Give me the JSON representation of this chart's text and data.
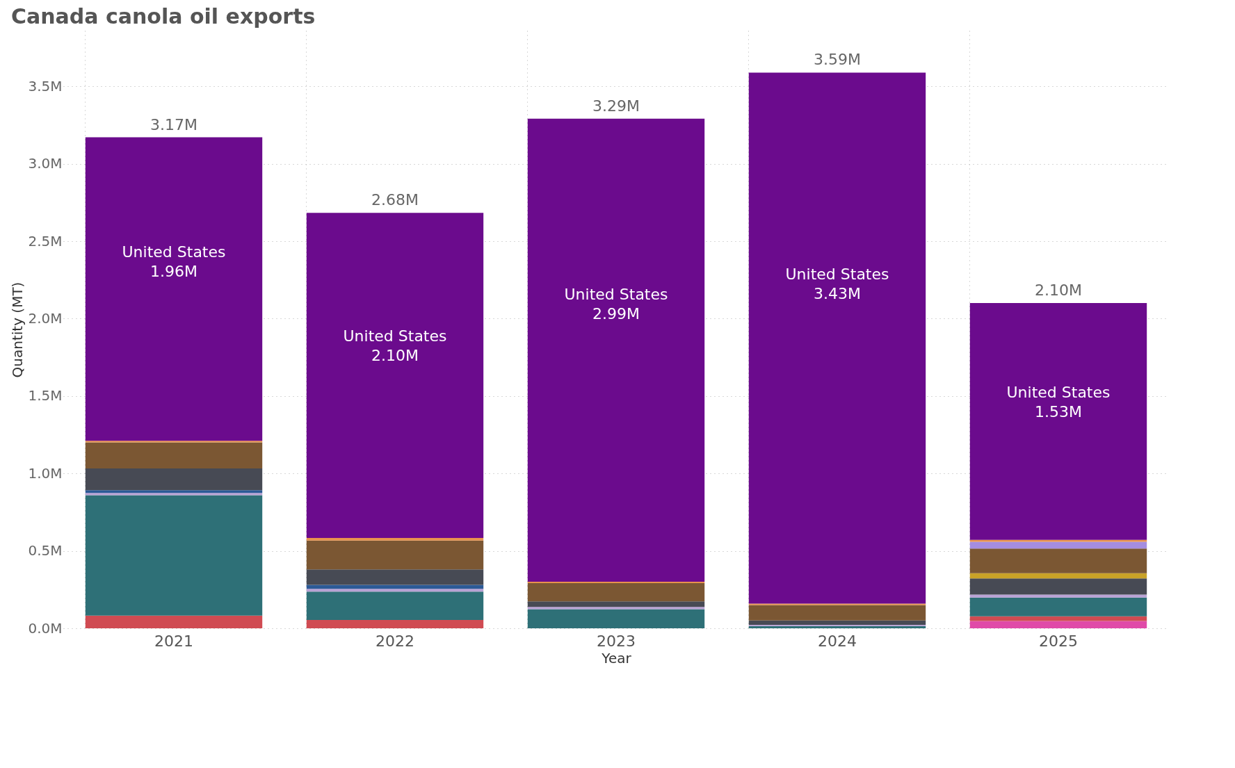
{
  "chart_data": {
    "type": "bar",
    "stacked": true,
    "title": "Canada canola oil exports",
    "xlabel": "Year",
    "ylabel": "Quantity (MT)",
    "categories": [
      "2021",
      "2022",
      "2023",
      "2024",
      "2025"
    ],
    "series": [
      {
        "color": "#e04aa8",
        "values": [
          null,
          null,
          null,
          null,
          0.047
        ]
      },
      {
        "color": "#d04b52",
        "values": [
          0.082,
          0.054,
          null,
          null,
          0.03
        ]
      },
      {
        "color": "#2e7077",
        "values": [
          0.777,
          0.183,
          0.123,
          0.015,
          0.122
        ]
      },
      {
        "color": "#b8a2d4",
        "values": [
          0.015,
          0.018,
          0.015,
          0.008,
          0.019
        ]
      },
      {
        "color": "#2c5a96",
        "values": [
          0.018,
          0.025,
          null,
          null,
          null
        ]
      },
      {
        "color": "#474a54",
        "values": [
          0.14,
          0.1,
          0.036,
          0.027,
          0.104
        ]
      },
      {
        "color": "#c9a227",
        "values": [
          null,
          null,
          null,
          null,
          0.034
        ]
      },
      {
        "color": "#7b5733",
        "values": [
          0.169,
          0.187,
          0.118,
          0.1,
          0.159
        ]
      },
      {
        "color": "#a58de0",
        "values": [
          null,
          null,
          null,
          null,
          0.044
        ]
      },
      {
        "color": "#e8924d",
        "values": [
          0.01,
          0.016,
          0.009,
          0.009,
          0.012
        ]
      },
      {
        "name": "United States",
        "color": "#6b0b8d",
        "values": [
          1.96,
          2.1,
          2.99,
          3.43,
          1.53
        ],
        "value_labels": [
          "1.96M",
          "2.10M",
          "2.99M",
          "3.43M",
          "1.53M"
        ]
      }
    ],
    "totals": [
      "3.17M",
      "2.68M",
      "3.29M",
      "3.59M",
      "2.10M"
    ],
    "ylim": [
      0,
      3.86
    ],
    "yticks": [
      {
        "value": 0,
        "label": "0.0M"
      },
      {
        "value": 0.5,
        "label": "0.5M"
      },
      {
        "value": 1,
        "label": "1.0M"
      },
      {
        "value": 1.5,
        "label": "1.5M"
      },
      {
        "value": 2,
        "label": "2.0M"
      },
      {
        "value": 2.5,
        "label": "2.5M"
      },
      {
        "value": 3,
        "label": "3.0M"
      },
      {
        "value": 3.5,
        "label": "3.5M"
      }
    ],
    "grid": true,
    "legend": false
  }
}
